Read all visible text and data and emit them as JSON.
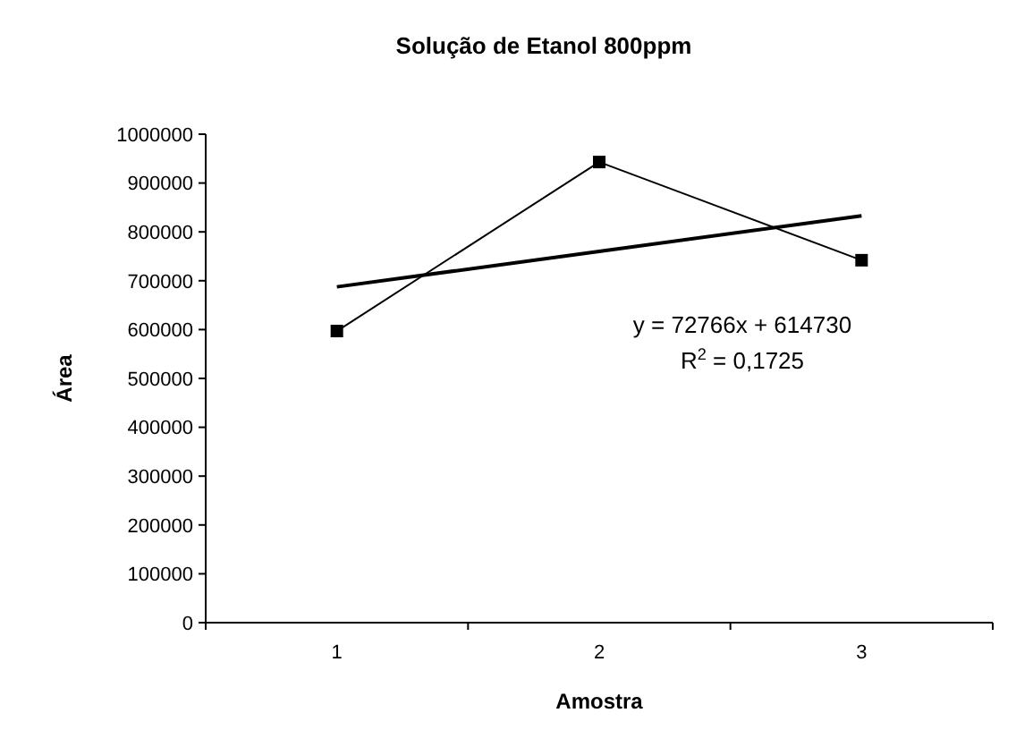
{
  "chart_data": {
    "type": "line",
    "title": "Solução de Etanol  800ppm",
    "xlabel": "Amostra",
    "ylabel": "Área",
    "categories": [
      "1",
      "2",
      "3"
    ],
    "series": [
      {
        "color": "#000000",
        "marker": "square",
        "values": [
          597000,
          943000,
          742000
        ]
      },
      {
        "color": "#000000",
        "marker": "none",
        "values": [
          687500,
          760000,
          833000
        ]
      }
    ],
    "annotations": [
      "y = 72766x + 614730",
      "R$^{2}$ = 0,1725"
    ],
    "ylim": [
      0,
      1000000
    ],
    "yticks": [
      0,
      100000,
      200000,
      300000,
      400000,
      500000,
      600000,
      700000,
      800000,
      900000,
      1000000
    ],
    "grid": false
  }
}
